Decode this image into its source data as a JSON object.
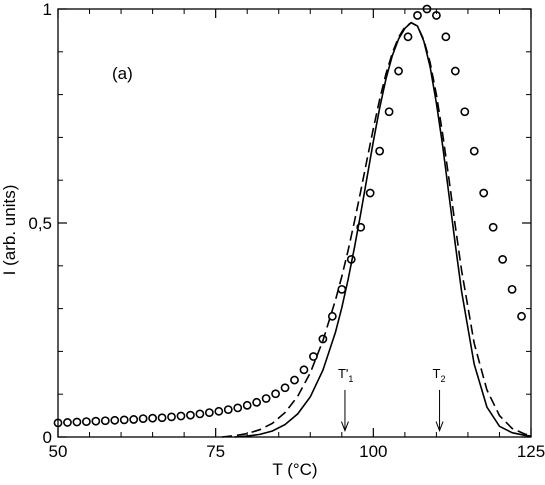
{
  "chart_data": {
    "type": "scatter",
    "title": "",
    "panel_label": "(a)",
    "xlabel": "T (°C)",
    "ylabel": "I (arb. units)",
    "xlim": [
      50,
      125
    ],
    "ylim": [
      0,
      1.0
    ],
    "xticks": [
      {
        "value": 50,
        "label": "50"
      },
      {
        "value": 75,
        "label": "75"
      },
      {
        "value": 100,
        "label": "100"
      },
      {
        "value": 125,
        "label": "125"
      }
    ],
    "yticks": [
      {
        "value": 0,
        "label": "0"
      },
      {
        "value": 0.5,
        "label": "0,5"
      },
      {
        "value": 1.0,
        "label": "1"
      }
    ],
    "grid": false,
    "legend": "none",
    "series": [
      {
        "kind": "markers",
        "marker": "open-circle",
        "color": "#000000",
        "x": [
          50,
          51.5,
          53,
          54.5,
          56,
          57.5,
          59,
          60.5,
          62,
          63.5,
          65,
          66.5,
          68,
          69.5,
          71,
          72.5,
          74,
          75.5,
          77,
          78.5,
          80,
          81.5,
          83,
          84.5,
          86,
          87.5,
          89,
          90.5,
          92,
          93.5,
          95,
          96.5,
          98,
          99.5,
          101,
          102.5,
          104,
          105.5,
          107,
          108.5,
          110,
          111.5,
          113,
          114.5,
          116,
          117.5,
          119,
          120.5,
          122,
          123.5
        ],
        "values": [
          0.033,
          0.034,
          0.035,
          0.036,
          0.037,
          0.038,
          0.039,
          0.04,
          0.041,
          0.043,
          0.044,
          0.045,
          0.047,
          0.049,
          0.051,
          0.054,
          0.057,
          0.06,
          0.064,
          0.068,
          0.074,
          0.081,
          0.09,
          0.101,
          0.115,
          0.133,
          0.157,
          0.188,
          0.229,
          0.282,
          0.345,
          0.415,
          0.49,
          0.57,
          0.668,
          0.76,
          0.855,
          0.935,
          0.985,
          1.0,
          0.985,
          0.935,
          0.855,
          0.76,
          0.668,
          0.57,
          0.49,
          0.415,
          0.345,
          0.282
        ]
      },
      {
        "kind": "line",
        "style": "solid",
        "color": "#000000",
        "x": [
          78,
          80,
          82,
          84,
          86,
          88,
          90,
          92,
          94,
          95,
          96,
          97,
          98,
          99,
          100,
          101,
          102,
          103,
          104,
          105,
          106,
          107,
          108,
          109,
          110,
          111,
          112,
          113,
          114,
          116,
          118,
          120,
          122,
          124,
          125
        ],
        "values": [
          0.0,
          0.002,
          0.006,
          0.014,
          0.029,
          0.054,
          0.094,
          0.156,
          0.245,
          0.302,
          0.368,
          0.442,
          0.522,
          0.606,
          0.69,
          0.768,
          0.836,
          0.891,
          0.93,
          0.955,
          0.968,
          0.96,
          0.925,
          0.865,
          0.78,
          0.68,
          0.565,
          0.45,
          0.34,
          0.17,
          0.07,
          0.025,
          0.01,
          0.004,
          0.002
        ]
      },
      {
        "kind": "line",
        "style": "dashed",
        "color": "#000000",
        "x": [
          76,
          78,
          80,
          82,
          84,
          86,
          88,
          90,
          92,
          94,
          95,
          96,
          97,
          98,
          99,
          100,
          101,
          102,
          103,
          104,
          105,
          106,
          107,
          108,
          109,
          110,
          111,
          112,
          113,
          114,
          116,
          118,
          120,
          122,
          124,
          125
        ],
        "values": [
          0.0,
          0.003,
          0.008,
          0.017,
          0.032,
          0.057,
          0.095,
          0.15,
          0.225,
          0.32,
          0.375,
          0.436,
          0.503,
          0.574,
          0.648,
          0.72,
          0.788,
          0.848,
          0.897,
          0.934,
          0.958,
          0.968,
          0.96,
          0.928,
          0.875,
          0.8,
          0.707,
          0.602,
          0.493,
          0.389,
          0.219,
          0.11,
          0.05,
          0.02,
          0.007,
          0.004
        ]
      }
    ],
    "annotations": [
      {
        "text": "T'",
        "subscript": "1",
        "x": 95.5,
        "arrow_from_y": 0.11,
        "arrow_to_y": 0.015
      },
      {
        "text": "T",
        "subscript": "2",
        "x": 110.5,
        "arrow_from_y": 0.11,
        "arrow_to_y": 0.015
      }
    ]
  }
}
